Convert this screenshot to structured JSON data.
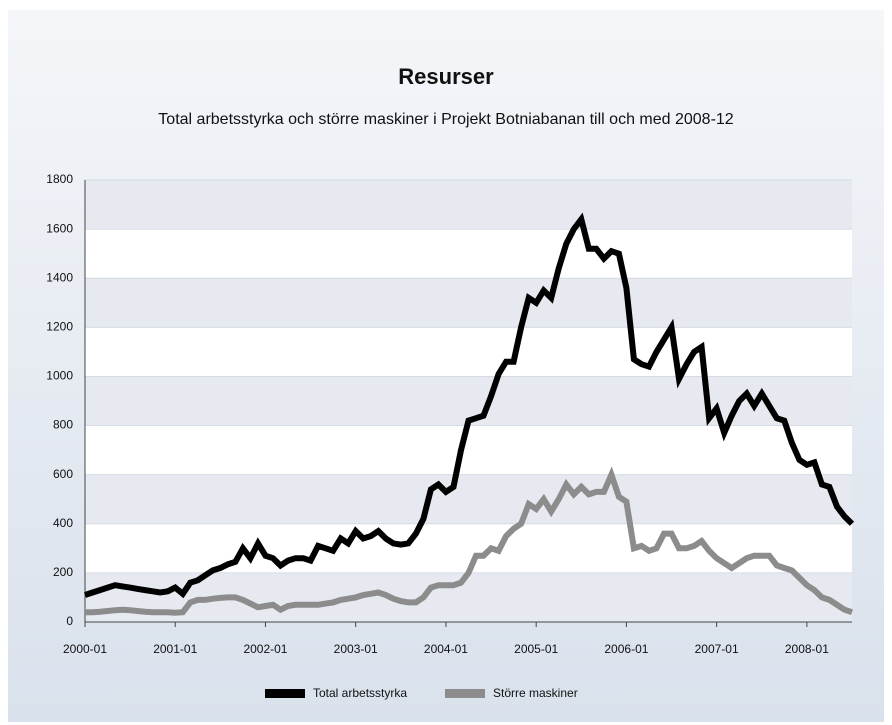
{
  "chart_data": {
    "type": "line",
    "title": "Resurser",
    "subtitle": "Total arbetsstyrka och större maskiner i Projekt Botniabanan till och med 2008-12",
    "categories": [
      "2000-01",
      null,
      null,
      null,
      null,
      null,
      null,
      null,
      null,
      null,
      null,
      null,
      "2001-01",
      null,
      null,
      null,
      null,
      null,
      null,
      null,
      null,
      null,
      null,
      null,
      "2002-01",
      null,
      null,
      null,
      null,
      null,
      null,
      null,
      null,
      null,
      null,
      null,
      "2003-01",
      null,
      null,
      null,
      null,
      null,
      null,
      null,
      null,
      null,
      null,
      null,
      "2004-01",
      null,
      null,
      null,
      null,
      null,
      null,
      null,
      null,
      null,
      null,
      null,
      "2005-01",
      null,
      null,
      null,
      null,
      null,
      null,
      null,
      null,
      null,
      null,
      null,
      "2006-01",
      null,
      null,
      null,
      null,
      null,
      null,
      null,
      null,
      null,
      null,
      null,
      "2007-01",
      null,
      null,
      null,
      null,
      null,
      null,
      null,
      null,
      null,
      null,
      null,
      "2008-01",
      null,
      null,
      null,
      null,
      null,
      null
    ],
    "series": [
      {
        "name": "Total arbetsstyrka",
        "color": "#000000",
        "values": [
          110,
          120,
          130,
          140,
          150,
          145,
          140,
          135,
          130,
          125,
          120,
          125,
          140,
          115,
          160,
          170,
          190,
          210,
          220,
          235,
          245,
          300,
          260,
          320,
          270,
          260,
          230,
          250,
          260,
          260,
          250,
          310,
          300,
          290,
          340,
          320,
          370,
          340,
          350,
          370,
          340,
          320,
          315,
          320,
          360,
          420,
          540,
          560,
          530,
          550,
          700,
          820,
          830,
          840,
          920,
          1010,
          1060,
          1060,
          1200,
          1320,
          1300,
          1350,
          1320,
          1440,
          1540,
          1600,
          1640,
          1520,
          1520,
          1480,
          1510,
          1500,
          1360,
          1070,
          1050,
          1040,
          1100,
          1150,
          1200,
          990,
          1050,
          1100,
          1120,
          830,
          870,
          770,
          840,
          900,
          930,
          880,
          930,
          880,
          830,
          820,
          730,
          660,
          640,
          650,
          560,
          550,
          470,
          430,
          400
        ]
      },
      {
        "name": "Större maskiner",
        "color": "#8c8c8c",
        "values": [
          40,
          40,
          42,
          45,
          48,
          50,
          48,
          45,
          42,
          40,
          40,
          40,
          38,
          40,
          80,
          90,
          90,
          95,
          98,
          100,
          100,
          90,
          75,
          60,
          65,
          70,
          50,
          65,
          70,
          70,
          70,
          70,
          75,
          80,
          90,
          95,
          100,
          110,
          115,
          120,
          110,
          95,
          85,
          80,
          80,
          100,
          140,
          150,
          150,
          150,
          160,
          200,
          270,
          270,
          300,
          290,
          350,
          380,
          400,
          480,
          460,
          500,
          450,
          500,
          560,
          520,
          550,
          520,
          530,
          530,
          600,
          510,
          490,
          300,
          310,
          290,
          300,
          360,
          360,
          300,
          300,
          310,
          330,
          290,
          260,
          240,
          220,
          240,
          260,
          270,
          270,
          270,
          230,
          220,
          210,
          180,
          150,
          130,
          100,
          90,
          70,
          50,
          40
        ]
      }
    ],
    "ylim": [
      0,
      1800
    ],
    "yticks": [
      0,
      200,
      400,
      600,
      800,
      1000,
      1200,
      1400,
      1600,
      1800
    ],
    "grid": true,
    "legend": "bottom"
  }
}
